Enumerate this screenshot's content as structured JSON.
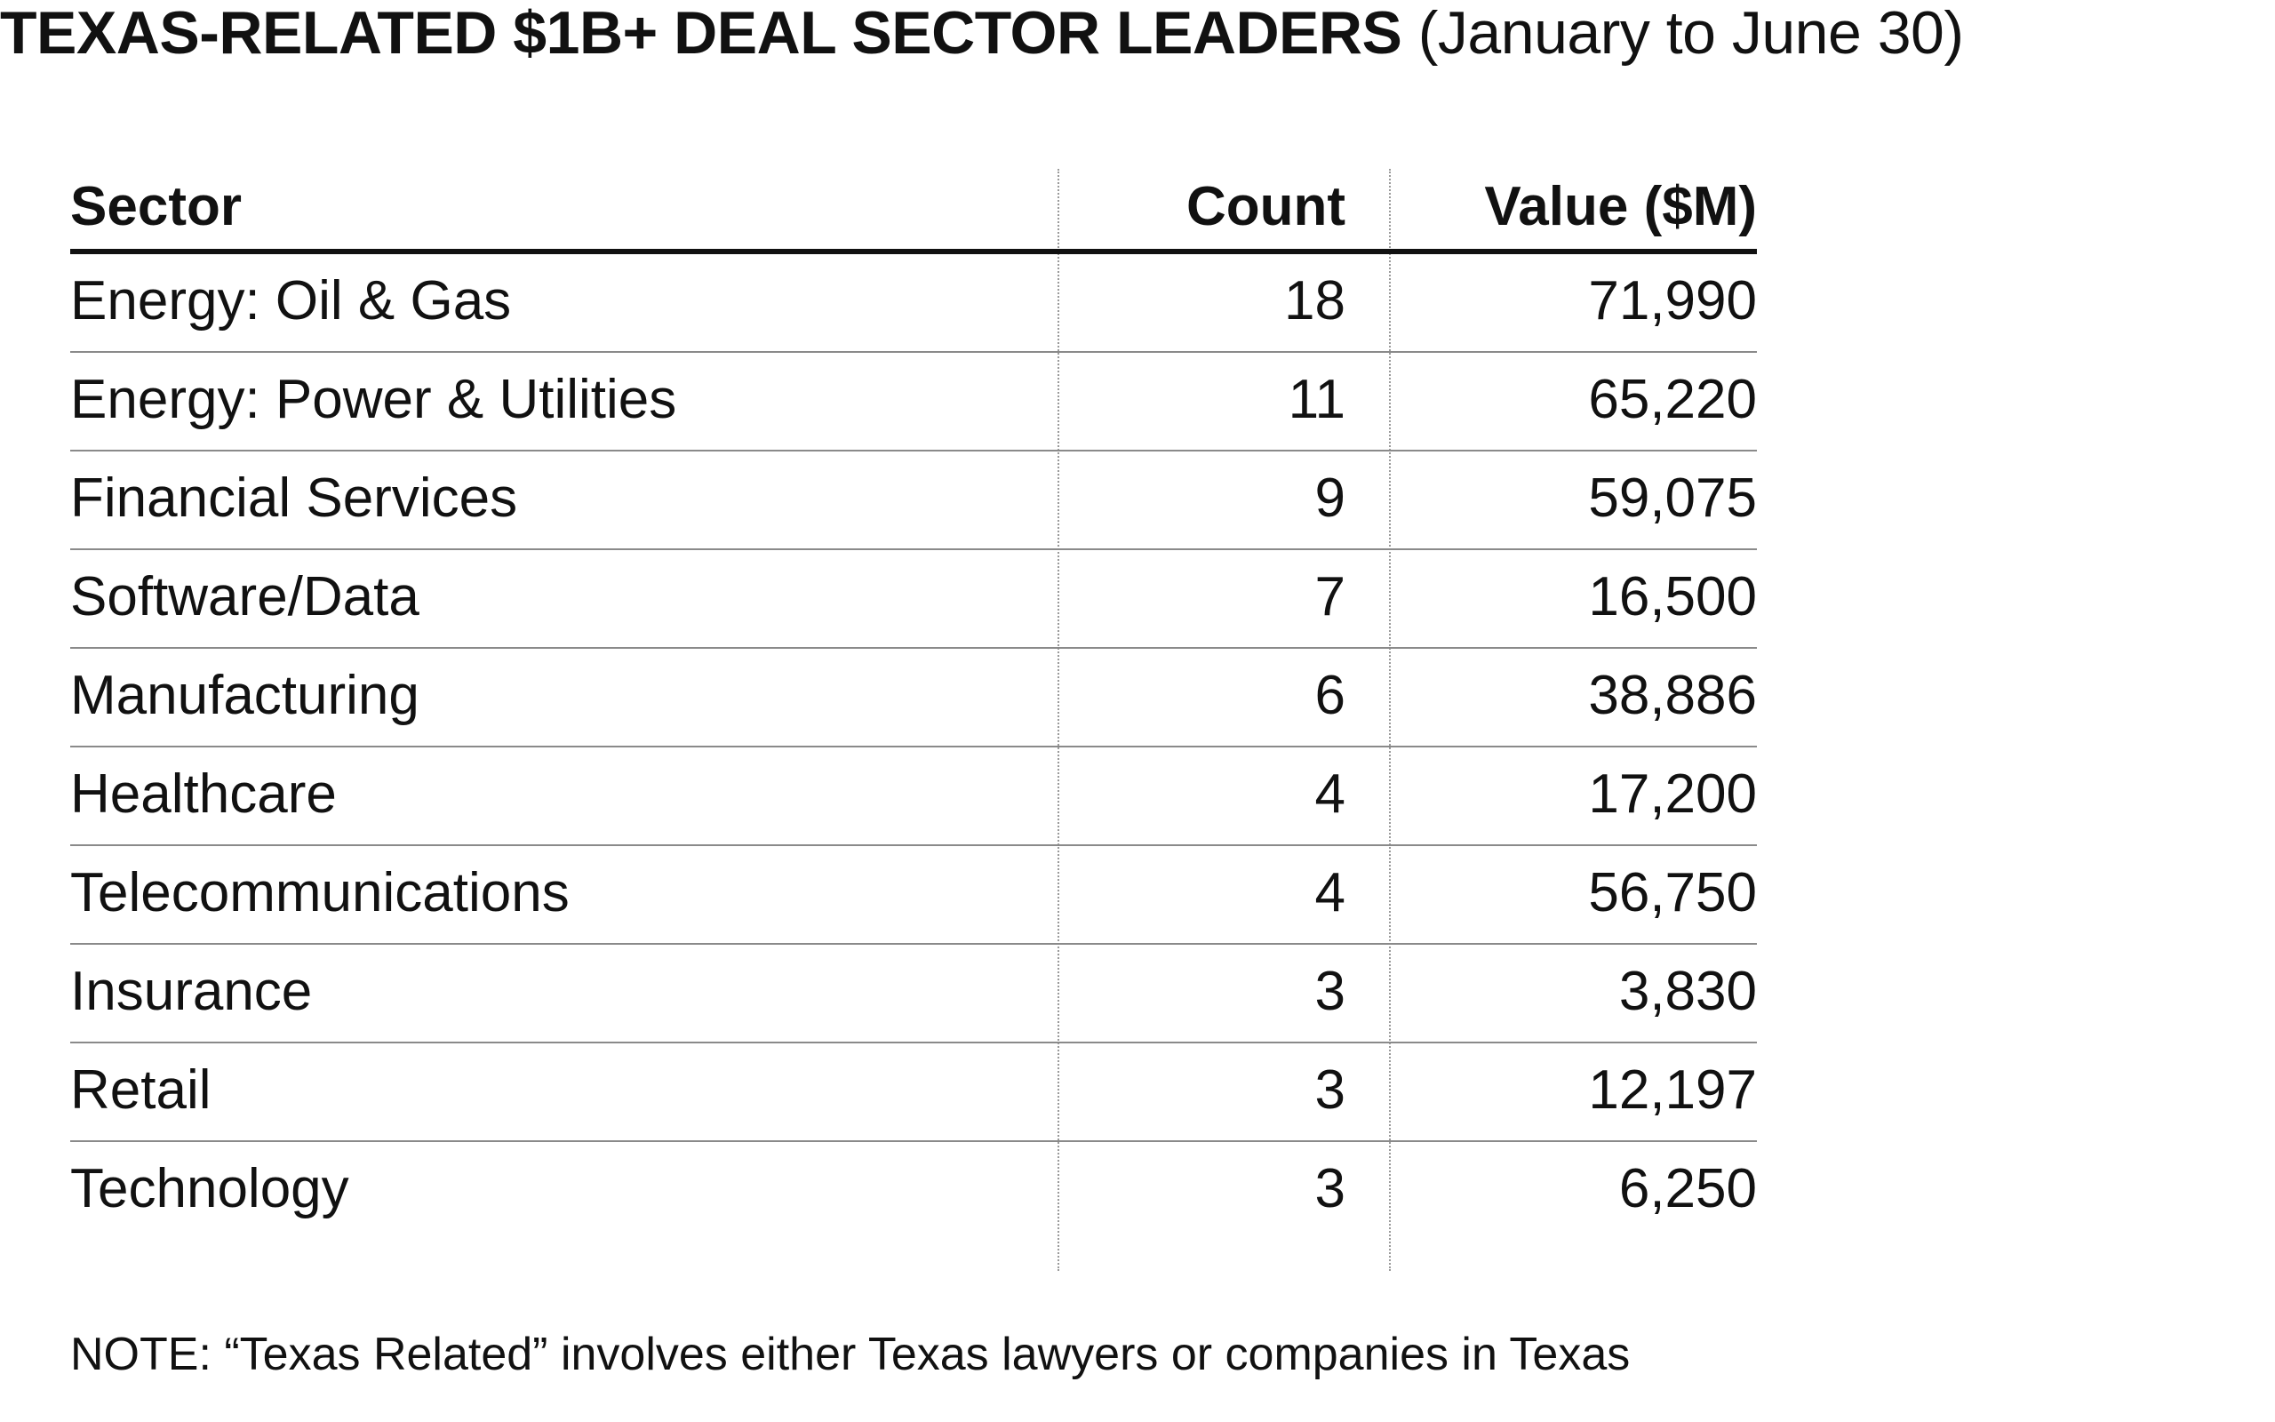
{
  "title": {
    "main": "TEXAS-RELATED $1B+ DEAL SECTOR LEADERS",
    "sub": "(January to June 30)"
  },
  "table": {
    "headers": {
      "sector": "Sector",
      "count": "Count",
      "value": "Value ($M)"
    },
    "rows": [
      {
        "sector": "Energy: Oil & Gas",
        "count": "18",
        "value": "71,990"
      },
      {
        "sector": "Energy: Power & Utilities",
        "count": "11",
        "value": "65,220"
      },
      {
        "sector": "Financial Services",
        "count": "9",
        "value": "59,075"
      },
      {
        "sector": "Software/Data",
        "count": "7",
        "value": "16,500"
      },
      {
        "sector": "Manufacturing",
        "count": "6",
        "value": "38,886"
      },
      {
        "sector": "Healthcare",
        "count": "4",
        "value": "17,200"
      },
      {
        "sector": "Telecommunications",
        "count": "4",
        "value": "56,750"
      },
      {
        "sector": "Insurance",
        "count": "3",
        "value": "3,830"
      },
      {
        "sector": "Retail",
        "count": "3",
        "value": "12,197"
      },
      {
        "sector": "Technology",
        "count": "3",
        "value": "6,250"
      }
    ]
  },
  "note": "NOTE: “Texas Related” involves either Texas lawyers or companies in Texas"
}
